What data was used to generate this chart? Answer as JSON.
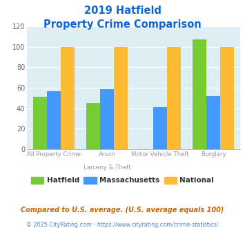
{
  "title_line1": "2019 Hatfield",
  "title_line2": "Property Crime Comparison",
  "hatfield": [
    51,
    45,
    0,
    107
  ],
  "massachusetts": [
    57,
    59,
    41,
    52
  ],
  "national": [
    100,
    100,
    100,
    100
  ],
  "colors": {
    "hatfield": "#77cc33",
    "massachusetts": "#4499ff",
    "national": "#ffbb33"
  },
  "ylim": [
    0,
    120
  ],
  "yticks": [
    0,
    20,
    40,
    60,
    80,
    100,
    120
  ],
  "bg_color": "#ddeef5",
  "title_color": "#1166cc",
  "legend_labels": [
    "Hatfield",
    "Massachusetts",
    "National"
  ],
  "cat_label1": [
    "All Property Crime",
    "Arson",
    "Motor Vehicle Theft",
    "Burglary"
  ],
  "cat_label2": [
    "",
    "Larceny & Theft",
    "",
    ""
  ],
  "footnote1": "Compared to U.S. average. (U.S. average equals 100)",
  "footnote2": "© 2025 CityRating.com - https://www.cityrating.com/crime-statistics/",
  "footnote1_color": "#cc6600",
  "footnote2_color": "#5588cc"
}
